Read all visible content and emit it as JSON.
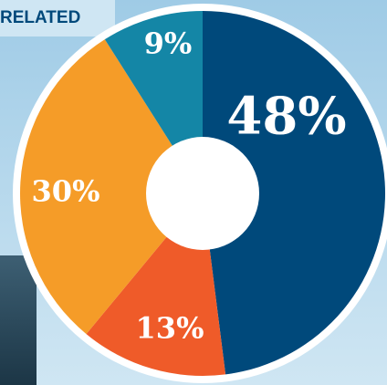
{
  "header": {
    "text": "RELATED"
  },
  "chart_data": {
    "type": "donut",
    "categories": [
      null,
      null,
      null,
      null
    ],
    "values": [
      48,
      13,
      30,
      9
    ],
    "value_labels": [
      "48%",
      "13%",
      "30%",
      "9%"
    ],
    "colors": [
      "#00497b",
      "#ef5b29",
      "#f59c28",
      "#1486a6"
    ]
  }
}
